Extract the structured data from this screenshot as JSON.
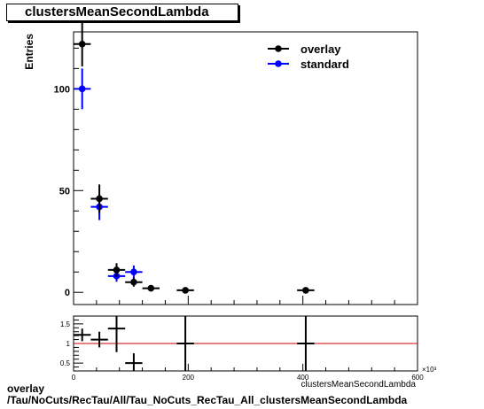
{
  "title": "clustersMeanSecondLambda",
  "footer": {
    "line1": "overlay",
    "line2": "/Tau/NoCuts/RecTau/All/Tau_NoCuts_RecTau_All_clustersMeanSecondLambda"
  },
  "colors": {
    "overlay": "#000000",
    "standard": "#0000ff",
    "ratio_line": "#cc0000"
  },
  "chart_data": [
    {
      "type": "scatter",
      "title": "",
      "ylabel": "Entries",
      "xlim": [
        0,
        600
      ],
      "ylim": [
        -6,
        128
      ],
      "ytick_labels": [
        "0",
        "50",
        "100"
      ],
      "ytick_values": [
        0,
        50,
        100
      ],
      "legend": {
        "placement": "top-right",
        "entries": [
          "overlay",
          "standard"
        ]
      },
      "series": [
        {
          "name": "overlay",
          "x": [
            15,
            45,
            75,
            105,
            135,
            195,
            405
          ],
          "xerr": [
            15,
            15,
            15,
            15,
            15,
            15,
            15
          ],
          "y": [
            122,
            46,
            11,
            5,
            2,
            1,
            1
          ],
          "yerr": [
            11,
            7,
            3.3,
            2.2,
            1.4,
            1,
            1
          ]
        },
        {
          "name": "standard",
          "x": [
            15,
            45,
            75,
            105
          ],
          "xerr": [
            15,
            15,
            15,
            15
          ],
          "y": [
            100,
            42,
            8,
            10
          ],
          "yerr": [
            10,
            6.5,
            2.8,
            3.2
          ]
        }
      ]
    },
    {
      "type": "scatter",
      "xlim": [
        0,
        600
      ],
      "ylim": [
        0.3,
        1.7
      ],
      "xtick_labels": [
        "0",
        "200",
        "400",
        "600"
      ],
      "xtick_values": [
        0,
        200,
        400,
        600
      ],
      "x_multiplier": "×10³",
      "xlabel": "clustersMeanSecondLambda",
      "ytick_labels": [
        "0.5",
        "1",
        "1.5"
      ],
      "ytick_values": [
        0.5,
        1,
        1.5
      ],
      "reference_line": 1,
      "series": [
        {
          "x": [
            15,
            45,
            75,
            105,
            195,
            405
          ],
          "xerr": [
            15,
            15,
            15,
            15,
            15,
            15
          ],
          "y": [
            1.22,
            1.1,
            1.38,
            0.5,
            1.0,
            1.0
          ],
          "yerr": [
            0.16,
            0.2,
            0.6,
            0.25,
            1.4,
            1.4
          ]
        }
      ]
    }
  ]
}
